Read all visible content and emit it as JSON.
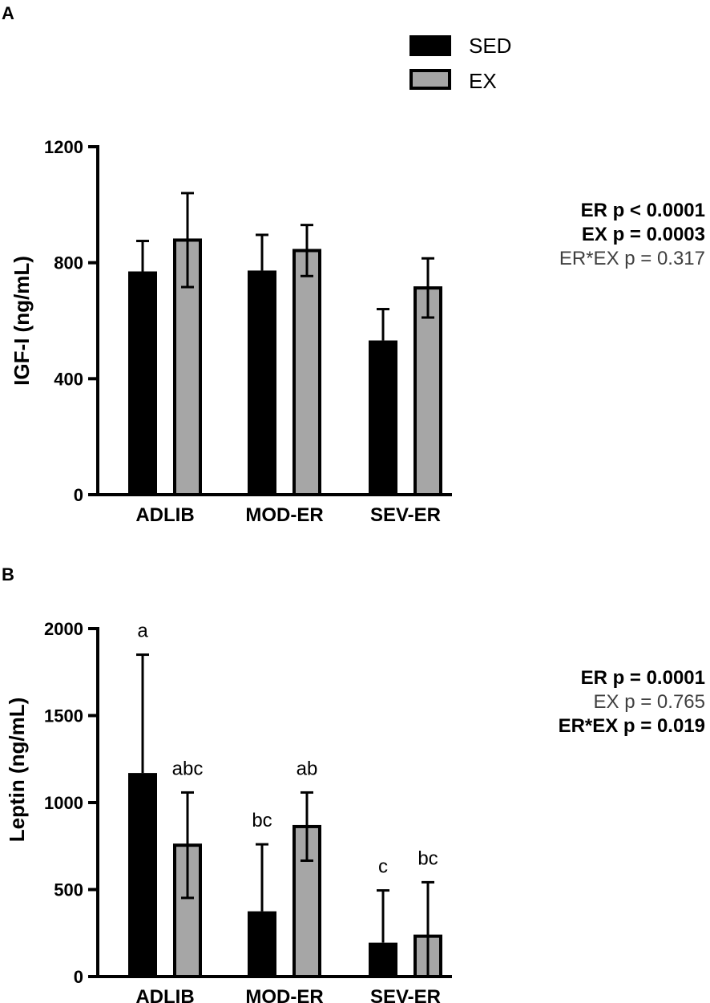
{
  "colors": {
    "sed": "#000000",
    "ex": "#a6a6a6",
    "ex_stroke": "#000000"
  },
  "legend": {
    "items": [
      {
        "label": "SED"
      },
      {
        "label": "EX"
      }
    ]
  },
  "chart_data": [
    {
      "panel": "A",
      "type": "bar",
      "categories": [
        "ADLIB",
        "MOD-ER",
        "SEV-ER"
      ],
      "ylabel": "IGF-I (ng/mL)",
      "ylim": [
        0,
        1200
      ],
      "yticks": [
        "0",
        "400",
        "800",
        "1200"
      ],
      "series": [
        {
          "name": "SED",
          "values": [
            770,
            773,
            532
          ],
          "errors": [
            105,
            123,
            108
          ]
        },
        {
          "name": "EX",
          "values": [
            878,
            842,
            713
          ],
          "errors": [
            162,
            88,
            102
          ]
        }
      ],
      "significance": [
        [],
        []
      ],
      "stats": [
        {
          "term": "ER",
          "p": "p < 0.0001",
          "bold": true
        },
        {
          "term": "EX",
          "p": "p = 0.0003",
          "bold": true
        },
        {
          "term": "ER*EX",
          "p": "p = 0.317",
          "bold": false
        }
      ]
    },
    {
      "panel": "B",
      "type": "bar",
      "categories": [
        "ADLIB",
        "MOD-ER",
        "SEV-ER"
      ],
      "ylabel": "Leptin (ng/mL)",
      "ylim": [
        0,
        2000
      ],
      "yticks": [
        "0",
        "500",
        "1000",
        "1500",
        "2000"
      ],
      "series": [
        {
          "name": "SED",
          "values": [
            1170,
            375,
            195
          ],
          "errors": [
            680,
            385,
            300
          ]
        },
        {
          "name": "EX",
          "values": [
            755,
            862,
            232
          ],
          "errors": [
            303,
            196,
            310
          ]
        }
      ],
      "significance": [
        [
          "a",
          "bc",
          "c"
        ],
        [
          "abc",
          "ab",
          "bc"
        ]
      ],
      "stats": [
        {
          "term": "ER",
          "p": "p = 0.0001",
          "bold": true
        },
        {
          "term": "EX",
          "p": "p = 0.765",
          "bold": false
        },
        {
          "term": "ER*EX",
          "p": "p = 0.019",
          "bold": true
        }
      ]
    }
  ]
}
